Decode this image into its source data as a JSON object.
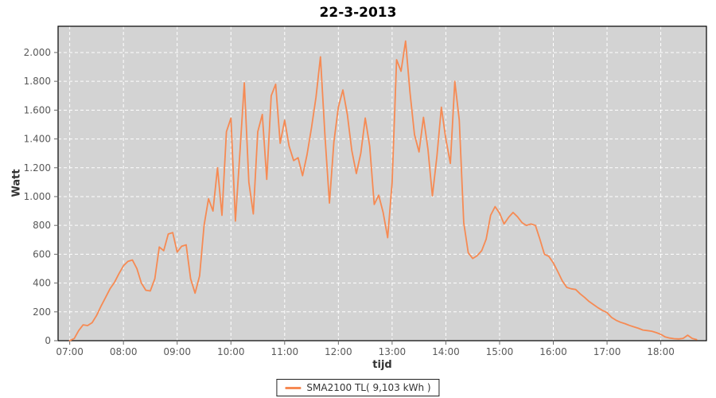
{
  "window": {
    "title": "22-3-2013"
  },
  "colors": {
    "plot_background": "#D3D3D3",
    "gridline": "#FFFFFF",
    "plot_border": "#000000",
    "tick": "#666666",
    "tick_label": "#595959",
    "axis_title": "#333333",
    "series": "#F68A53"
  },
  "chart_data": {
    "type": "line",
    "title": "22-3-2013",
    "xlabel": "tijd",
    "ylabel": "Watt",
    "grid": true,
    "x_tick_labels": [
      "07:00",
      "08:00",
      "09:00",
      "10:00",
      "11:00",
      "12:00",
      "13:00",
      "14:00",
      "15:00",
      "16:00",
      "17:00",
      "18:00"
    ],
    "y_tick_labels": [
      "0",
      "200",
      "400",
      "600",
      "800",
      "1.000",
      "1.200",
      "1.400",
      "1.600",
      "1.800",
      "2.000"
    ],
    "ylim": [
      0,
      2182
    ],
    "x_domain_minutes": [
      407,
      1131
    ],
    "legend": {
      "position": "bottom",
      "label": "SMA2100 TL( 9,103 kWh )"
    },
    "series": [
      {
        "name": "SMA2100 TL( 9,103 kWh )",
        "color": "#F68A53",
        "x": [
          "07:00",
          "07:05",
          "07:10",
          "07:15",
          "07:20",
          "07:25",
          "07:30",
          "07:35",
          "07:40",
          "07:45",
          "07:50",
          "07:55",
          "08:00",
          "08:05",
          "08:10",
          "08:15",
          "08:20",
          "08:25",
          "08:30",
          "08:35",
          "08:40",
          "08:45",
          "08:50",
          "08:55",
          "09:00",
          "09:05",
          "09:10",
          "09:15",
          "09:20",
          "09:25",
          "09:30",
          "09:35",
          "09:40",
          "09:45",
          "09:50",
          "09:55",
          "10:00",
          "10:05",
          "10:10",
          "10:15",
          "10:20",
          "10:25",
          "10:30",
          "10:35",
          "10:40",
          "10:45",
          "10:50",
          "10:55",
          "11:00",
          "11:05",
          "11:10",
          "11:15",
          "11:20",
          "11:25",
          "11:30",
          "11:35",
          "11:40",
          "11:45",
          "11:50",
          "11:55",
          "12:00",
          "12:05",
          "12:10",
          "12:15",
          "12:20",
          "12:25",
          "12:30",
          "12:35",
          "12:40",
          "12:45",
          "12:50",
          "12:55",
          "13:00",
          "13:05",
          "13:10",
          "13:15",
          "13:20",
          "13:25",
          "13:30",
          "13:35",
          "13:40",
          "13:45",
          "13:50",
          "13:55",
          "14:00",
          "14:05",
          "14:10",
          "14:15",
          "14:20",
          "14:25",
          "14:30",
          "14:35",
          "14:40",
          "14:45",
          "14:50",
          "14:55",
          "15:00",
          "15:05",
          "15:10",
          "15:15",
          "15:20",
          "15:25",
          "15:30",
          "15:35",
          "15:40",
          "15:45",
          "15:50",
          "15:55",
          "16:00",
          "16:05",
          "16:10",
          "16:15",
          "16:20",
          "16:25",
          "16:30",
          "16:35",
          "16:40",
          "16:45",
          "16:50",
          "16:55",
          "17:00",
          "17:05",
          "17:10",
          "17:15",
          "17:20",
          "17:25",
          "17:30",
          "17:35",
          "17:40",
          "17:45",
          "17:50",
          "17:55",
          "18:00",
          "18:05",
          "18:10",
          "18:15",
          "18:20",
          "18:25",
          "18:30",
          "18:35",
          "18:40"
        ],
        "y": [
          0,
          15,
          70,
          110,
          105,
          125,
          175,
          240,
          300,
          360,
          405,
          465,
          520,
          550,
          560,
          500,
          400,
          350,
          345,
          430,
          650,
          625,
          740,
          750,
          615,
          655,
          665,
          430,
          330,
          450,
          800,
          985,
          900,
          1200,
          870,
          1450,
          1545,
          830,
          1300,
          1790,
          1100,
          880,
          1450,
          1570,
          1120,
          1700,
          1780,
          1370,
          1530,
          1350,
          1250,
          1270,
          1145,
          1290,
          1480,
          1690,
          1970,
          1420,
          955,
          1380,
          1620,
          1740,
          1570,
          1320,
          1160,
          1300,
          1545,
          1350,
          945,
          1010,
          890,
          715,
          1100,
          1950,
          1870,
          2080,
          1720,
          1430,
          1310,
          1550,
          1330,
          1005,
          1280,
          1620,
          1400,
          1230,
          1800,
          1530,
          820,
          610,
          570,
          590,
          625,
          705,
          870,
          930,
          885,
          810,
          855,
          890,
          860,
          820,
          800,
          810,
          800,
          705,
          600,
          585,
          540,
          480,
          415,
          370,
          360,
          355,
          325,
          300,
          272,
          250,
          228,
          210,
          195,
          162,
          142,
          128,
          118,
          106,
          96,
          86,
          74,
          70,
          66,
          56,
          44,
          26,
          18,
          14,
          12,
          16,
          38,
          16,
          8
        ]
      }
    ]
  }
}
